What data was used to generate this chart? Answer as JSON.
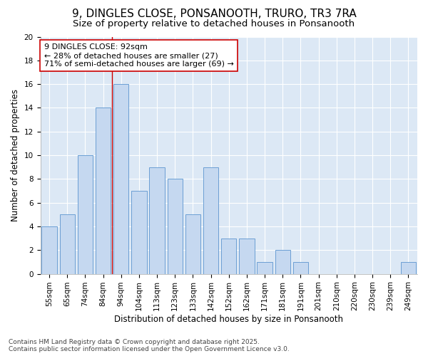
{
  "title_line1": "9, DINGLES CLOSE, PONSANOOTH, TRURO, TR3 7RA",
  "title_line2": "Size of property relative to detached houses in Ponsanooth",
  "xlabel": "Distribution of detached houses by size in Ponsanooth",
  "ylabel": "Number of detached properties",
  "categories": [
    "55sqm",
    "65sqm",
    "74sqm",
    "84sqm",
    "94sqm",
    "104sqm",
    "113sqm",
    "123sqm",
    "133sqm",
    "142sqm",
    "152sqm",
    "162sqm",
    "171sqm",
    "181sqm",
    "191sqm",
    "201sqm",
    "210sqm",
    "220sqm",
    "230sqm",
    "239sqm",
    "249sqm"
  ],
  "values": [
    4,
    5,
    10,
    14,
    16,
    7,
    9,
    8,
    5,
    9,
    3,
    3,
    1,
    2,
    1,
    0,
    0,
    0,
    0,
    0,
    1
  ],
  "bar_color": "#c5d8f0",
  "bar_edge_color": "#6b9fd4",
  "vline_x_index": 4,
  "vline_color": "#cc0000",
  "annotation_text": "9 DINGLES CLOSE: 92sqm\n← 28% of detached houses are smaller (27)\n71% of semi-detached houses are larger (69) →",
  "annotation_box_color": "white",
  "annotation_box_edge_color": "#cc0000",
  "ylim": [
    0,
    20
  ],
  "yticks": [
    0,
    2,
    4,
    6,
    8,
    10,
    12,
    14,
    16,
    18,
    20
  ],
  "footer_line1": "Contains HM Land Registry data © Crown copyright and database right 2025.",
  "footer_line2": "Contains public sector information licensed under the Open Government Licence v3.0.",
  "fig_bg_color": "#ffffff",
  "plot_bg_color": "#dce8f5",
  "grid_color": "#ffffff",
  "title_fontsize": 11,
  "subtitle_fontsize": 9.5,
  "axis_label_fontsize": 8.5,
  "tick_fontsize": 7.5,
  "annotation_fontsize": 8,
  "footer_fontsize": 6.5
}
